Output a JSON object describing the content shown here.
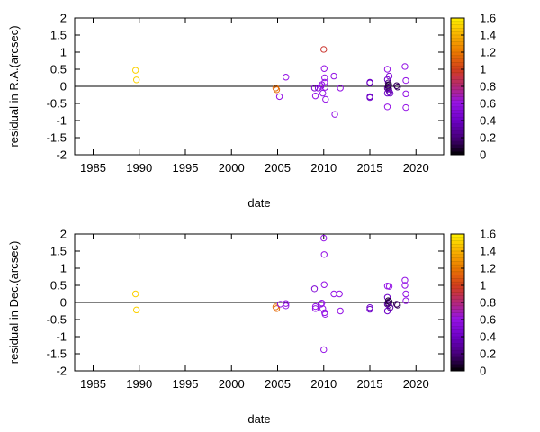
{
  "chart_data": [
    {
      "type": "scatter",
      "panel": "ra",
      "xlabel": "date",
      "ylabel": "residual in R.A.(arcsec)",
      "xlim": [
        1983,
        2023
      ],
      "ylim": [
        -2,
        2
      ],
      "xticks": [
        1985,
        1990,
        1995,
        2000,
        2005,
        2010,
        2015,
        2020
      ],
      "yticks": [
        -2,
        -1.5,
        -1,
        -0.5,
        0,
        0.5,
        1,
        1.5,
        2
      ],
      "colorbar": {
        "min": 0,
        "max": 1.6,
        "ticks": [
          0,
          0.2,
          0.4,
          0.6,
          0.8,
          1,
          1.2,
          1.4,
          1.6
        ]
      },
      "reference_line": 0,
      "points": [
        {
          "x": 1989.6,
          "y": 0.47,
          "c": 1.5
        },
        {
          "x": 1989.7,
          "y": 0.19,
          "c": 1.5
        },
        {
          "x": 2004.8,
          "y": -0.05,
          "c": 1.15
        },
        {
          "x": 2004.9,
          "y": -0.1,
          "c": 1.15
        },
        {
          "x": 2005.2,
          "y": -0.3,
          "c": 0.6
        },
        {
          "x": 2005.9,
          "y": 0.27,
          "c": 0.6
        },
        {
          "x": 2009.0,
          "y": -0.05,
          "c": 0.5
        },
        {
          "x": 2009.1,
          "y": -0.28,
          "c": 0.6
        },
        {
          "x": 2009.4,
          "y": -0.05,
          "c": 0.5
        },
        {
          "x": 2009.7,
          "y": 0.0,
          "c": 0.6
        },
        {
          "x": 2009.8,
          "y": 0.05,
          "c": 0.6
        },
        {
          "x": 2009.9,
          "y": -0.2,
          "c": 0.6
        },
        {
          "x": 2010.0,
          "y": 1.08,
          "c": 0.95
        },
        {
          "x": 2010.05,
          "y": 0.52,
          "c": 0.6
        },
        {
          "x": 2010.1,
          "y": 0.25,
          "c": 0.6
        },
        {
          "x": 2010.1,
          "y": 0.12,
          "c": 0.6
        },
        {
          "x": 2010.15,
          "y": -0.03,
          "c": 0.6
        },
        {
          "x": 2010.2,
          "y": -0.38,
          "c": 0.6
        },
        {
          "x": 2011.1,
          "y": 0.3,
          "c": 0.6
        },
        {
          "x": 2011.2,
          "y": -0.82,
          "c": 0.6
        },
        {
          "x": 2011.8,
          "y": -0.05,
          "c": 0.6
        },
        {
          "x": 2015.0,
          "y": 0.12,
          "c": 0.4
        },
        {
          "x": 2015.0,
          "y": 0.1,
          "c": 0.4
        },
        {
          "x": 2015.0,
          "y": -0.3,
          "c": 0.4
        },
        {
          "x": 2015.0,
          "y": -0.33,
          "c": 0.4
        },
        {
          "x": 2016.9,
          "y": 0.5,
          "c": 0.6
        },
        {
          "x": 2016.9,
          "y": 0.2,
          "c": 0.4
        },
        {
          "x": 2016.9,
          "y": -0.05,
          "c": 0.3
        },
        {
          "x": 2016.9,
          "y": -0.2,
          "c": 0.4
        },
        {
          "x": 2016.9,
          "y": -0.6,
          "c": 0.6
        },
        {
          "x": 2017.0,
          "y": 0.1,
          "c": 0.2
        },
        {
          "x": 2017.0,
          "y": 0.02,
          "c": 0.1
        },
        {
          "x": 2017.0,
          "y": -0.02,
          "c": 0.1
        },
        {
          "x": 2017.05,
          "y": 0.05,
          "c": 0.1
        },
        {
          "x": 2017.05,
          "y": -0.08,
          "c": 0.2
        },
        {
          "x": 2017.1,
          "y": -0.15,
          "c": 0.3
        },
        {
          "x": 2017.1,
          "y": 0.3,
          "c": 0.5
        },
        {
          "x": 2017.2,
          "y": -0.2,
          "c": 0.4
        },
        {
          "x": 2017.9,
          "y": 0.02,
          "c": 0.15
        },
        {
          "x": 2018.0,
          "y": -0.02,
          "c": 0.15
        },
        {
          "x": 2018.8,
          "y": 0.58,
          "c": 0.6
        },
        {
          "x": 2018.9,
          "y": 0.17,
          "c": 0.6
        },
        {
          "x": 2018.9,
          "y": -0.22,
          "c": 0.6
        },
        {
          "x": 2018.9,
          "y": -0.62,
          "c": 0.6
        }
      ]
    },
    {
      "type": "scatter",
      "panel": "dec",
      "xlabel": "date",
      "ylabel": "residual in Dec.(arcsec)",
      "xlim": [
        1983,
        2023
      ],
      "ylim": [
        -2,
        2
      ],
      "xticks": [
        1985,
        1990,
        1995,
        2000,
        2005,
        2010,
        2015,
        2020
      ],
      "yticks": [
        -2,
        -1.5,
        -1,
        -0.5,
        0,
        0.5,
        1,
        1.5,
        2
      ],
      "colorbar": {
        "min": 0,
        "max": 1.6,
        "ticks": [
          0,
          0.2,
          0.4,
          0.6,
          0.8,
          1,
          1.2,
          1.4,
          1.6
        ]
      },
      "reference_line": 0,
      "points": [
        {
          "x": 1989.6,
          "y": 0.25,
          "c": 1.5
        },
        {
          "x": 1989.7,
          "y": -0.22,
          "c": 1.5
        },
        {
          "x": 2004.8,
          "y": -0.13,
          "c": 1.15
        },
        {
          "x": 2004.9,
          "y": -0.18,
          "c": 1.15
        },
        {
          "x": 2005.3,
          "y": -0.05,
          "c": 0.6
        },
        {
          "x": 2005.9,
          "y": -0.03,
          "c": 0.6
        },
        {
          "x": 2005.9,
          "y": -0.1,
          "c": 0.6
        },
        {
          "x": 2009.0,
          "y": 0.4,
          "c": 0.5
        },
        {
          "x": 2009.1,
          "y": -0.12,
          "c": 0.6
        },
        {
          "x": 2009.1,
          "y": -0.18,
          "c": 0.6
        },
        {
          "x": 2009.7,
          "y": -0.05,
          "c": 0.6
        },
        {
          "x": 2009.8,
          "y": -0.02,
          "c": 0.6
        },
        {
          "x": 2009.9,
          "y": -0.18,
          "c": 0.6
        },
        {
          "x": 2010.0,
          "y": 1.88,
          "c": 0.6
        },
        {
          "x": 2010.05,
          "y": 1.4,
          "c": 0.6
        },
        {
          "x": 2010.05,
          "y": 0.52,
          "c": 0.6
        },
        {
          "x": 2010.1,
          "y": -0.3,
          "c": 0.6
        },
        {
          "x": 2010.15,
          "y": -0.35,
          "c": 0.6
        },
        {
          "x": 2010.0,
          "y": -1.38,
          "c": 0.6
        },
        {
          "x": 2011.1,
          "y": 0.25,
          "c": 0.6
        },
        {
          "x": 2011.7,
          "y": 0.25,
          "c": 0.6
        },
        {
          "x": 2011.8,
          "y": -0.25,
          "c": 0.6
        },
        {
          "x": 2015.0,
          "y": -0.15,
          "c": 0.4
        },
        {
          "x": 2015.0,
          "y": -0.2,
          "c": 0.4
        },
        {
          "x": 2016.9,
          "y": 0.48,
          "c": 0.6
        },
        {
          "x": 2016.9,
          "y": 0.15,
          "c": 0.4
        },
        {
          "x": 2016.9,
          "y": -0.05,
          "c": 0.3
        },
        {
          "x": 2016.9,
          "y": -0.25,
          "c": 0.4
        },
        {
          "x": 2017.0,
          "y": 0.05,
          "c": 0.1
        },
        {
          "x": 2017.0,
          "y": -0.02,
          "c": 0.1
        },
        {
          "x": 2017.05,
          "y": -0.08,
          "c": 0.2
        },
        {
          "x": 2017.1,
          "y": 0.02,
          "c": 0.1
        },
        {
          "x": 2017.1,
          "y": 0.47,
          "c": 0.6
        },
        {
          "x": 2017.2,
          "y": -0.15,
          "c": 0.3
        },
        {
          "x": 2017.9,
          "y": -0.05,
          "c": 0.15
        },
        {
          "x": 2018.0,
          "y": -0.08,
          "c": 0.15
        },
        {
          "x": 2018.8,
          "y": 0.65,
          "c": 0.6
        },
        {
          "x": 2018.8,
          "y": 0.5,
          "c": 0.6
        },
        {
          "x": 2018.9,
          "y": 0.25,
          "c": 0.6
        },
        {
          "x": 2018.9,
          "y": 0.05,
          "c": 0.6
        }
      ]
    }
  ]
}
